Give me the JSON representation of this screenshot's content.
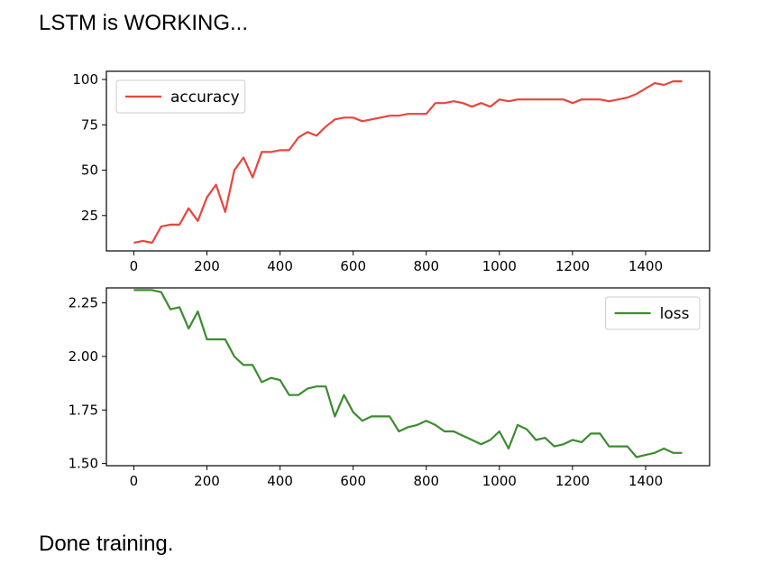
{
  "status": {
    "top": "LSTM is WORKING...",
    "bottom": "Done training."
  },
  "chart_data": [
    {
      "type": "line",
      "legend_position": "upper-left",
      "grid": false,
      "xlim": [
        -75,
        1575
      ],
      "ylim": [
        5.5,
        104.5
      ],
      "xticks": [
        0,
        200,
        400,
        600,
        800,
        1000,
        1200,
        1400
      ],
      "yticks": [
        25,
        50,
        75,
        100
      ],
      "x": [
        0,
        25,
        50,
        75,
        100,
        125,
        150,
        175,
        200,
        225,
        250,
        275,
        300,
        325,
        350,
        375,
        400,
        425,
        450,
        475,
        500,
        525,
        550,
        575,
        600,
        625,
        650,
        675,
        700,
        725,
        750,
        775,
        800,
        825,
        850,
        875,
        900,
        925,
        950,
        975,
        1000,
        1025,
        1050,
        1075,
        1100,
        1125,
        1150,
        1175,
        1200,
        1225,
        1250,
        1275,
        1300,
        1325,
        1350,
        1375,
        1400,
        1425,
        1450,
        1475,
        1500
      ],
      "series": [
        {
          "name": "accuracy",
          "color": "#e8453c",
          "values": [
            10,
            11,
            10,
            19,
            20,
            20,
            29,
            22,
            35,
            42,
            27,
            50,
            57,
            46,
            60,
            60,
            61,
            61,
            68,
            71,
            69,
            74,
            78,
            79,
            79,
            77,
            78,
            79,
            80,
            80,
            81,
            81,
            81,
            87,
            87,
            88,
            87,
            85,
            87,
            85,
            89,
            88,
            89,
            89,
            89,
            89,
            89,
            89,
            87,
            89,
            89,
            89,
            88,
            89,
            90,
            92,
            95,
            98,
            97,
            99,
            99
          ]
        }
      ]
    },
    {
      "type": "line",
      "legend_position": "upper-right",
      "grid": false,
      "xlim": [
        -75,
        1575
      ],
      "ylim": [
        1.49,
        2.32
      ],
      "xticks": [
        0,
        200,
        400,
        600,
        800,
        1000,
        1200,
        1400
      ],
      "yticks": [
        1.5,
        1.75,
        2.0,
        2.25
      ],
      "y_tick_format": 2,
      "x": [
        0,
        25,
        50,
        75,
        100,
        125,
        150,
        175,
        200,
        225,
        250,
        275,
        300,
        325,
        350,
        375,
        400,
        425,
        450,
        475,
        500,
        525,
        550,
        575,
        600,
        625,
        650,
        675,
        700,
        725,
        750,
        775,
        800,
        825,
        850,
        875,
        900,
        925,
        950,
        975,
        1000,
        1025,
        1050,
        1075,
        1100,
        1125,
        1150,
        1175,
        1200,
        1225,
        1250,
        1275,
        1300,
        1325,
        1350,
        1375,
        1400,
        1425,
        1450,
        1475,
        1500
      ],
      "series": [
        {
          "name": "loss",
          "color": "#3c8c2f",
          "values": [
            2.31,
            2.31,
            2.31,
            2.3,
            2.22,
            2.23,
            2.13,
            2.21,
            2.08,
            2.08,
            2.08,
            2.0,
            1.96,
            1.96,
            1.88,
            1.9,
            1.89,
            1.82,
            1.82,
            1.85,
            1.86,
            1.86,
            1.72,
            1.82,
            1.74,
            1.7,
            1.72,
            1.72,
            1.72,
            1.65,
            1.67,
            1.68,
            1.7,
            1.68,
            1.65,
            1.65,
            1.63,
            1.61,
            1.59,
            1.61,
            1.65,
            1.57,
            1.68,
            1.66,
            1.61,
            1.62,
            1.58,
            1.59,
            1.61,
            1.6,
            1.64,
            1.64,
            1.58,
            1.58,
            1.58,
            1.53,
            1.54,
            1.55,
            1.57,
            1.55,
            1.55
          ]
        }
      ]
    }
  ]
}
